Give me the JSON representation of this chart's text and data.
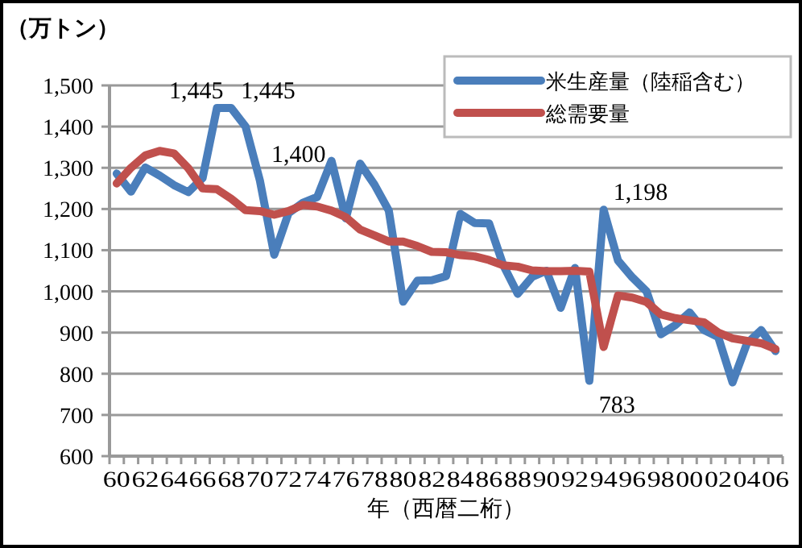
{
  "chart_data": {
    "type": "line",
    "ylabel": "（万トン）",
    "xlabel": "年（西暦二桁）",
    "categories": [
      "60",
      null,
      "62",
      null,
      "64",
      null,
      "66",
      null,
      "68",
      null,
      "70",
      null,
      "72",
      null,
      "74",
      null,
      "76",
      null,
      "78",
      null,
      "80",
      null,
      "82",
      null,
      "84",
      null,
      "86",
      null,
      "88",
      null,
      "90",
      null,
      "92",
      null,
      "94",
      null,
      "96",
      null,
      "98",
      null,
      "00",
      null,
      "02",
      null,
      "04",
      null,
      "06"
    ],
    "series": [
      {
        "name": "米生産量（陸稲含む）",
        "color": "#4a7ebb",
        "values": [
          1286,
          1242,
          1301,
          1281,
          1258,
          1241,
          1275,
          1445,
          1445,
          1400,
          1269,
          1089,
          1190,
          1215,
          1229,
          1317,
          1177,
          1310,
          1259,
          1196,
          975,
          1026,
          1027,
          1037,
          1188,
          1166,
          1165,
          1063,
          994,
          1035,
          1050,
          960,
          1057,
          783,
          1198,
          1075,
          1034,
          1000,
          896,
          918,
          949,
          906,
          889,
          779,
          873,
          906,
          855
        ],
        "value_labels": [
          null,
          null,
          null,
          null,
          null,
          null,
          null,
          "1,445",
          "1,445",
          "1,400",
          null,
          null,
          null,
          null,
          null,
          null,
          null,
          null,
          null,
          null,
          null,
          null,
          null,
          null,
          null,
          null,
          null,
          null,
          null,
          null,
          null,
          null,
          null,
          "783",
          "1,198",
          null,
          null,
          null,
          null,
          null,
          null,
          null,
          null,
          null,
          null,
          null,
          null
        ]
      },
      {
        "name": "総需要量",
        "color": "#c0504d",
        "values": [
          1262,
          1300,
          1330,
          1341,
          1335,
          1299,
          1250,
          1248,
          1225,
          1197,
          1195,
          1186,
          1195,
          1210,
          1206,
          1196,
          1180,
          1150,
          1136,
          1121,
          1121,
          1110,
          1096,
          1095,
          1088,
          1085,
          1076,
          1063,
          1060,
          1051,
          1049,
          1049,
          1050,
          1048,
          865,
          990,
          985,
          974,
          944,
          935,
          930,
          925,
          900,
          886,
          880,
          874,
          860
        ]
      }
    ],
    "ylim": [
      600,
      1500
    ],
    "yticks": [
      {
        "value": 600,
        "label": "600"
      },
      {
        "value": 700,
        "label": "700"
      },
      {
        "value": 800,
        "label": "800"
      },
      {
        "value": 900,
        "label": "900"
      },
      {
        "value": 1000,
        "label": "1,000"
      },
      {
        "value": 1100,
        "label": "1,100"
      },
      {
        "value": 1200,
        "label": "1,200"
      },
      {
        "value": 1300,
        "label": "1,300"
      },
      {
        "value": 1400,
        "label": "1,400"
      },
      {
        "value": 1500,
        "label": "1,500"
      }
    ],
    "grid": "y",
    "legend": "top right",
    "marker": "none",
    "line_style": "solid"
  }
}
